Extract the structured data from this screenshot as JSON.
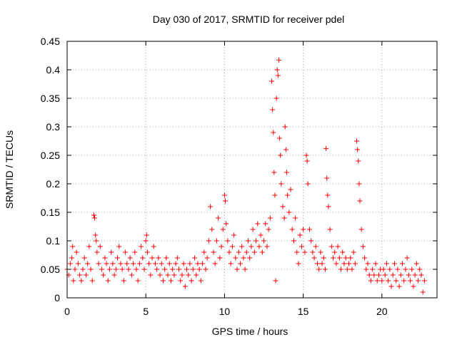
{
  "chart_data": {
    "type": "scatter",
    "title": "Day 030 of 2017, SRMTID for receiver pdel",
    "xlabel": "GPS time / hours",
    "ylabel": "SRMTID / TECUs",
    "xlim": [
      0,
      23.5
    ],
    "ylim": [
      0,
      0.45
    ],
    "xticks": [
      0,
      5,
      10,
      15,
      20
    ],
    "xtick_labels": [
      "0",
      "5",
      "10",
      "15",
      "20"
    ],
    "yticks": [
      0,
      0.05,
      0.1,
      0.15,
      0.2,
      0.25,
      0.3,
      0.35,
      0.4,
      0.45
    ],
    "ytick_labels": [
      "0",
      "0.05",
      "0.1",
      "0.15",
      "0.2",
      "0.25",
      "0.3",
      "0.35",
      "0.4",
      "0.45"
    ],
    "grid": true,
    "marker": "plus",
    "color": "#ff0000",
    "series": [
      {
        "name": "SRMTID",
        "points": [
          [
            0.0,
            0.05
          ],
          [
            0.1,
            0.04
          ],
          [
            0.2,
            0.06
          ],
          [
            0.3,
            0.07
          ],
          [
            0.35,
            0.09
          ],
          [
            0.4,
            0.03
          ],
          [
            0.5,
            0.05
          ],
          [
            0.6,
            0.08
          ],
          [
            0.7,
            0.06
          ],
          [
            0.8,
            0.04
          ],
          [
            0.9,
            0.03
          ],
          [
            1.0,
            0.05
          ],
          [
            1.1,
            0.07
          ],
          [
            1.2,
            0.04
          ],
          [
            1.3,
            0.06
          ],
          [
            1.4,
            0.09
          ],
          [
            1.5,
            0.05
          ],
          [
            1.6,
            0.03
          ],
          [
            1.7,
            0.145
          ],
          [
            1.75,
            0.14
          ],
          [
            1.8,
            0.11
          ],
          [
            1.85,
            0.1
          ],
          [
            1.9,
            0.08
          ],
          [
            2.0,
            0.06
          ],
          [
            2.1,
            0.09
          ],
          [
            2.2,
            0.05
          ],
          [
            2.3,
            0.04
          ],
          [
            2.4,
            0.07
          ],
          [
            2.5,
            0.06
          ],
          [
            2.6,
            0.03
          ],
          [
            2.7,
            0.05
          ],
          [
            2.8,
            0.08
          ],
          [
            2.9,
            0.06
          ],
          [
            3.0,
            0.04
          ],
          [
            3.1,
            0.05
          ],
          [
            3.2,
            0.07
          ],
          [
            3.3,
            0.09
          ],
          [
            3.4,
            0.06
          ],
          [
            3.5,
            0.05
          ],
          [
            3.6,
            0.03
          ],
          [
            3.7,
            0.08
          ],
          [
            3.8,
            0.06
          ],
          [
            3.9,
            0.05
          ],
          [
            4.0,
            0.07
          ],
          [
            4.1,
            0.04
          ],
          [
            4.2,
            0.06
          ],
          [
            4.3,
            0.08
          ],
          [
            4.4,
            0.05
          ],
          [
            4.5,
            0.03
          ],
          [
            4.6,
            0.06
          ],
          [
            4.7,
            0.09
          ],
          [
            4.8,
            0.07
          ],
          [
            4.9,
            0.05
          ],
          [
            5.0,
            0.1
          ],
          [
            5.05,
            0.11
          ],
          [
            5.1,
            0.08
          ],
          [
            5.2,
            0.06
          ],
          [
            5.3,
            0.04
          ],
          [
            5.4,
            0.07
          ],
          [
            5.5,
            0.09
          ],
          [
            5.6,
            0.06
          ],
          [
            5.7,
            0.05
          ],
          [
            5.8,
            0.07
          ],
          [
            5.9,
            0.04
          ],
          [
            6.0,
            0.06
          ],
          [
            6.1,
            0.03
          ],
          [
            6.2,
            0.05
          ],
          [
            6.3,
            0.07
          ],
          [
            6.4,
            0.04
          ],
          [
            6.5,
            0.06
          ],
          [
            6.6,
            0.03
          ],
          [
            6.7,
            0.05
          ],
          [
            6.8,
            0.04
          ],
          [
            6.9,
            0.06
          ],
          [
            7.0,
            0.07
          ],
          [
            7.1,
            0.05
          ],
          [
            7.2,
            0.03
          ],
          [
            7.3,
            0.04
          ],
          [
            7.4,
            0.06
          ],
          [
            7.5,
            0.02
          ],
          [
            7.6,
            0.05
          ],
          [
            7.7,
            0.04
          ],
          [
            7.8,
            0.06
          ],
          [
            7.9,
            0.03
          ],
          [
            8.0,
            0.05
          ],
          [
            8.1,
            0.07
          ],
          [
            8.2,
            0.04
          ],
          [
            8.3,
            0.06
          ],
          [
            8.4,
            0.05
          ],
          [
            8.5,
            0.03
          ],
          [
            8.6,
            0.06
          ],
          [
            8.7,
            0.08
          ],
          [
            8.8,
            0.05
          ],
          [
            8.9,
            0.07
          ],
          [
            9.0,
            0.1
          ],
          [
            9.1,
            0.16
          ],
          [
            9.2,
            0.12
          ],
          [
            9.3,
            0.08
          ],
          [
            9.4,
            0.06
          ],
          [
            9.5,
            0.1
          ],
          [
            9.6,
            0.14
          ],
          [
            9.7,
            0.07
          ],
          [
            9.8,
            0.09
          ],
          [
            9.9,
            0.12
          ],
          [
            10.0,
            0.18
          ],
          [
            10.05,
            0.17
          ],
          [
            10.1,
            0.13
          ],
          [
            10.2,
            0.1
          ],
          [
            10.3,
            0.08
          ],
          [
            10.4,
            0.06
          ],
          [
            10.5,
            0.09
          ],
          [
            10.6,
            0.11
          ],
          [
            10.7,
            0.07
          ],
          [
            10.8,
            0.05
          ],
          [
            10.9,
            0.08
          ],
          [
            11.0,
            0.06
          ],
          [
            11.1,
            0.09
          ],
          [
            11.2,
            0.07
          ],
          [
            11.3,
            0.05
          ],
          [
            11.4,
            0.08
          ],
          [
            11.5,
            0.1
          ],
          [
            11.6,
            0.07
          ],
          [
            11.7,
            0.09
          ],
          [
            11.8,
            0.12
          ],
          [
            11.9,
            0.08
          ],
          [
            12.0,
            0.1
          ],
          [
            12.1,
            0.13
          ],
          [
            12.2,
            0.09
          ],
          [
            12.3,
            0.11
          ],
          [
            12.4,
            0.08
          ],
          [
            12.5,
            0.1
          ],
          [
            12.6,
            0.13
          ],
          [
            12.7,
            0.09
          ],
          [
            12.8,
            0.12
          ],
          [
            12.9,
            0.14
          ],
          [
            13.0,
            0.38
          ],
          [
            13.05,
            0.33
          ],
          [
            13.1,
            0.29
          ],
          [
            13.15,
            0.22
          ],
          [
            13.2,
            0.18
          ],
          [
            13.25,
            0.03
          ],
          [
            13.3,
            0.35
          ],
          [
            13.35,
            0.4
          ],
          [
            13.4,
            0.39
          ],
          [
            13.45,
            0.417
          ],
          [
            13.5,
            0.28
          ],
          [
            13.55,
            0.25
          ],
          [
            13.6,
            0.2
          ],
          [
            13.7,
            0.16
          ],
          [
            13.8,
            0.14
          ],
          [
            13.85,
            0.3
          ],
          [
            13.9,
            0.26
          ],
          [
            13.95,
            0.22
          ],
          [
            14.0,
            0.18
          ],
          [
            14.1,
            0.15
          ],
          [
            14.2,
            0.19
          ],
          [
            14.3,
            0.12
          ],
          [
            14.4,
            0.1
          ],
          [
            14.5,
            0.14
          ],
          [
            14.6,
            0.08
          ],
          [
            14.7,
            0.06
          ],
          [
            14.8,
            0.11
          ],
          [
            14.9,
            0.09
          ],
          [
            15.0,
            0.12
          ],
          [
            15.1,
            0.08
          ],
          [
            15.2,
            0.25
          ],
          [
            15.25,
            0.24
          ],
          [
            15.3,
            0.2
          ],
          [
            15.4,
            0.12
          ],
          [
            15.5,
            0.1
          ],
          [
            15.6,
            0.08
          ],
          [
            15.7,
            0.07
          ],
          [
            15.8,
            0.09
          ],
          [
            15.9,
            0.06
          ],
          [
            16.0,
            0.05
          ],
          [
            16.1,
            0.08
          ],
          [
            16.2,
            0.06
          ],
          [
            16.3,
            0.07
          ],
          [
            16.4,
            0.05
          ],
          [
            16.45,
            0.262
          ],
          [
            16.5,
            0.21
          ],
          [
            16.55,
            0.18
          ],
          [
            16.6,
            0.16
          ],
          [
            16.7,
            0.12
          ],
          [
            16.8,
            0.09
          ],
          [
            16.9,
            0.07
          ],
          [
            17.0,
            0.08
          ],
          [
            17.1,
            0.06
          ],
          [
            17.2,
            0.09
          ],
          [
            17.3,
            0.07
          ],
          [
            17.4,
            0.05
          ],
          [
            17.5,
            0.08
          ],
          [
            17.6,
            0.06
          ],
          [
            17.7,
            0.07
          ],
          [
            17.8,
            0.05
          ],
          [
            17.9,
            0.06
          ],
          [
            18.0,
            0.07
          ],
          [
            18.1,
            0.05
          ],
          [
            18.2,
            0.08
          ],
          [
            18.3,
            0.06
          ],
          [
            18.4,
            0.275
          ],
          [
            18.45,
            0.26
          ],
          [
            18.5,
            0.24
          ],
          [
            18.55,
            0.2
          ],
          [
            18.6,
            0.17
          ],
          [
            18.7,
            0.12
          ],
          [
            18.8,
            0.09
          ],
          [
            18.9,
            0.07
          ],
          [
            19.0,
            0.05
          ],
          [
            19.1,
            0.06
          ],
          [
            19.2,
            0.04
          ],
          [
            19.3,
            0.03
          ],
          [
            19.4,
            0.05
          ],
          [
            19.5,
            0.04
          ],
          [
            19.6,
            0.06
          ],
          [
            19.7,
            0.03
          ],
          [
            19.8,
            0.04
          ],
          [
            19.9,
            0.05
          ],
          [
            20.0,
            0.03
          ],
          [
            20.1,
            0.05
          ],
          [
            20.2,
            0.04
          ],
          [
            20.3,
            0.06
          ],
          [
            20.4,
            0.03
          ],
          [
            20.5,
            0.05
          ],
          [
            20.6,
            0.02
          ],
          [
            20.7,
            0.04
          ],
          [
            20.8,
            0.06
          ],
          [
            20.9,
            0.03
          ],
          [
            21.0,
            0.05
          ],
          [
            21.1,
            0.02
          ],
          [
            21.2,
            0.04
          ],
          [
            21.3,
            0.06
          ],
          [
            21.4,
            0.03
          ],
          [
            21.5,
            0.05
          ],
          [
            21.6,
            0.07
          ],
          [
            21.7,
            0.04
          ],
          [
            21.8,
            0.03
          ],
          [
            21.9,
            0.05
          ],
          [
            22.0,
            0.02
          ],
          [
            22.1,
            0.04
          ],
          [
            22.2,
            0.06
          ],
          [
            22.3,
            0.03
          ],
          [
            22.4,
            0.05
          ],
          [
            22.5,
            0.04
          ],
          [
            22.6,
            0.01
          ],
          [
            22.7,
            0.03
          ]
        ]
      }
    ]
  }
}
